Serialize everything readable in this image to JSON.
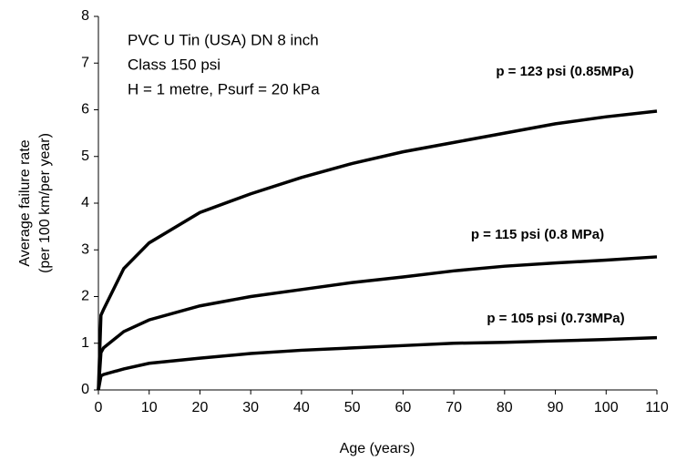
{
  "chart_data": {
    "type": "line",
    "annotations": [
      "PVC U Tin (USA) DN 8 inch",
      "Class 150 psi",
      "H = 1 metre, Psurf = 20 kPa"
    ],
    "xlabel": "Age (years)",
    "ylabel": [
      "Average failure rate",
      "(per 100 km/per year)"
    ],
    "x": [
      0,
      0.5,
      1,
      5,
      10,
      20,
      30,
      40,
      50,
      60,
      70,
      80,
      90,
      100,
      110
    ],
    "series": [
      {
        "name": "p = 123 psi (0.85MPa)",
        "color": "#000000",
        "values": [
          0,
          1.6,
          1.72,
          2.6,
          3.15,
          3.8,
          4.2,
          4.55,
          4.85,
          5.1,
          5.3,
          5.5,
          5.7,
          5.85,
          5.97
        ]
      },
      {
        "name": "p = 115 psi (0.8 MPa)",
        "color": "#000000",
        "values": [
          0,
          0.8,
          0.9,
          1.25,
          1.5,
          1.8,
          2.0,
          2.15,
          2.3,
          2.42,
          2.55,
          2.65,
          2.72,
          2.78,
          2.85
        ]
      },
      {
        "name": "p = 105 psi (0.73MPa)",
        "color": "#000000",
        "values": [
          0,
          0.3,
          0.33,
          0.45,
          0.57,
          0.68,
          0.78,
          0.85,
          0.9,
          0.95,
          1.0,
          1.02,
          1.05,
          1.08,
          1.12
        ]
      }
    ],
    "xlim": [
      0,
      110
    ],
    "xticks": [
      0,
      10,
      20,
      30,
      40,
      50,
      60,
      70,
      80,
      90,
      100,
      110
    ],
    "ylim": [
      0,
      8
    ],
    "yticks": [
      0,
      1,
      2,
      3,
      4,
      5,
      6,
      7,
      8
    ],
    "grid": false
  }
}
